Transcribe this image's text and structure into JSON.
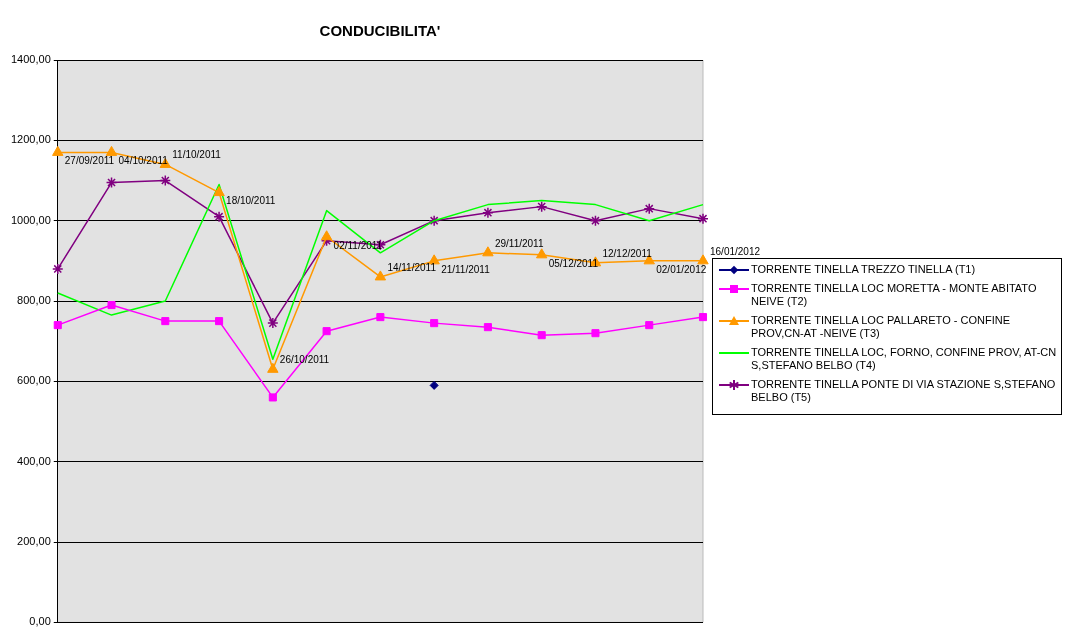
{
  "chart_data": {
    "type": "line",
    "title": "CONDUCIBILITA'",
    "categories": [
      null,
      null,
      null,
      null,
      null,
      null,
      null,
      null,
      null,
      null,
      null,
      null,
      null
    ],
    "series": [
      {
        "name": "TORRENTE TINELLA  TREZZO TINELLA (T1)",
        "color": "#000080",
        "marker": "diamond",
        "values": [
          null,
          null,
          null,
          null,
          null,
          null,
          null,
          590,
          null,
          null,
          null,
          null,
          null
        ]
      },
      {
        "name": "TORRENTE TINELLA  LOC MORETTA - MONTE ABITATO NEIVE (T2)",
        "color": "#ff00ff",
        "marker": "square",
        "values": [
          740,
          790,
          750,
          750,
          560,
          725,
          760,
          745,
          735,
          715,
          720,
          740,
          760
        ]
      },
      {
        "name": "TORRENTE TINELLA  LOC PALLARETO - CONFINE PROV,CN-AT -NEIVE (T3)",
        "color": "#ff9900",
        "marker": "triangle",
        "values": [
          1170,
          1170,
          1140,
          1070,
          630,
          960,
          860,
          900,
          920,
          915,
          895,
          900,
          900
        ],
        "value_labels": [
          "27/09/2011",
          "04/10/2011",
          "11/10/2011",
          "18/10/2011",
          "26/10/2011",
          "02/11/2011",
          "14/11/2011",
          "21/11/2011",
          "29/11/2011",
          "05/12/2011",
          "12/12/2011",
          "02/01/2012",
          "16/01/2012"
        ]
      },
      {
        "name": "TORRENTE TINELLA  LOC, FORNO,  CONFINE PROV, AT-CN  S,STEFANO BELBO (T4)",
        "color": "#00ff00",
        "marker": "none",
        "values": [
          820,
          765,
          800,
          1090,
          655,
          1025,
          920,
          1000,
          1040,
          1050,
          1040,
          1000,
          1040
        ]
      },
      {
        "name": "TORRENTE TINELLA  PONTE DI VIA STAZIONE S,STEFANO BELBO (T5)",
        "color": "#800080",
        "marker": "cross",
        "values": [
          880,
          1095,
          1100,
          1010,
          745,
          950,
          940,
          1000,
          1020,
          1035,
          1000,
          1030,
          1005
        ]
      }
    ],
    "ylim": [
      0,
      1400
    ],
    "yticks": [
      {
        "value": 0,
        "label": "0,00"
      },
      {
        "value": 200,
        "label": "200,00"
      },
      {
        "value": 400,
        "label": "400,00"
      },
      {
        "value": 600,
        "label": "600,00"
      },
      {
        "value": 800,
        "label": "800,00"
      },
      {
        "value": 1000,
        "label": "1000,00"
      },
      {
        "value": 1200,
        "label": "1200,00"
      },
      {
        "value": 1400,
        "label": "1400,00"
      }
    ],
    "grid": "y",
    "legend": "right",
    "tick_labels": "y"
  }
}
